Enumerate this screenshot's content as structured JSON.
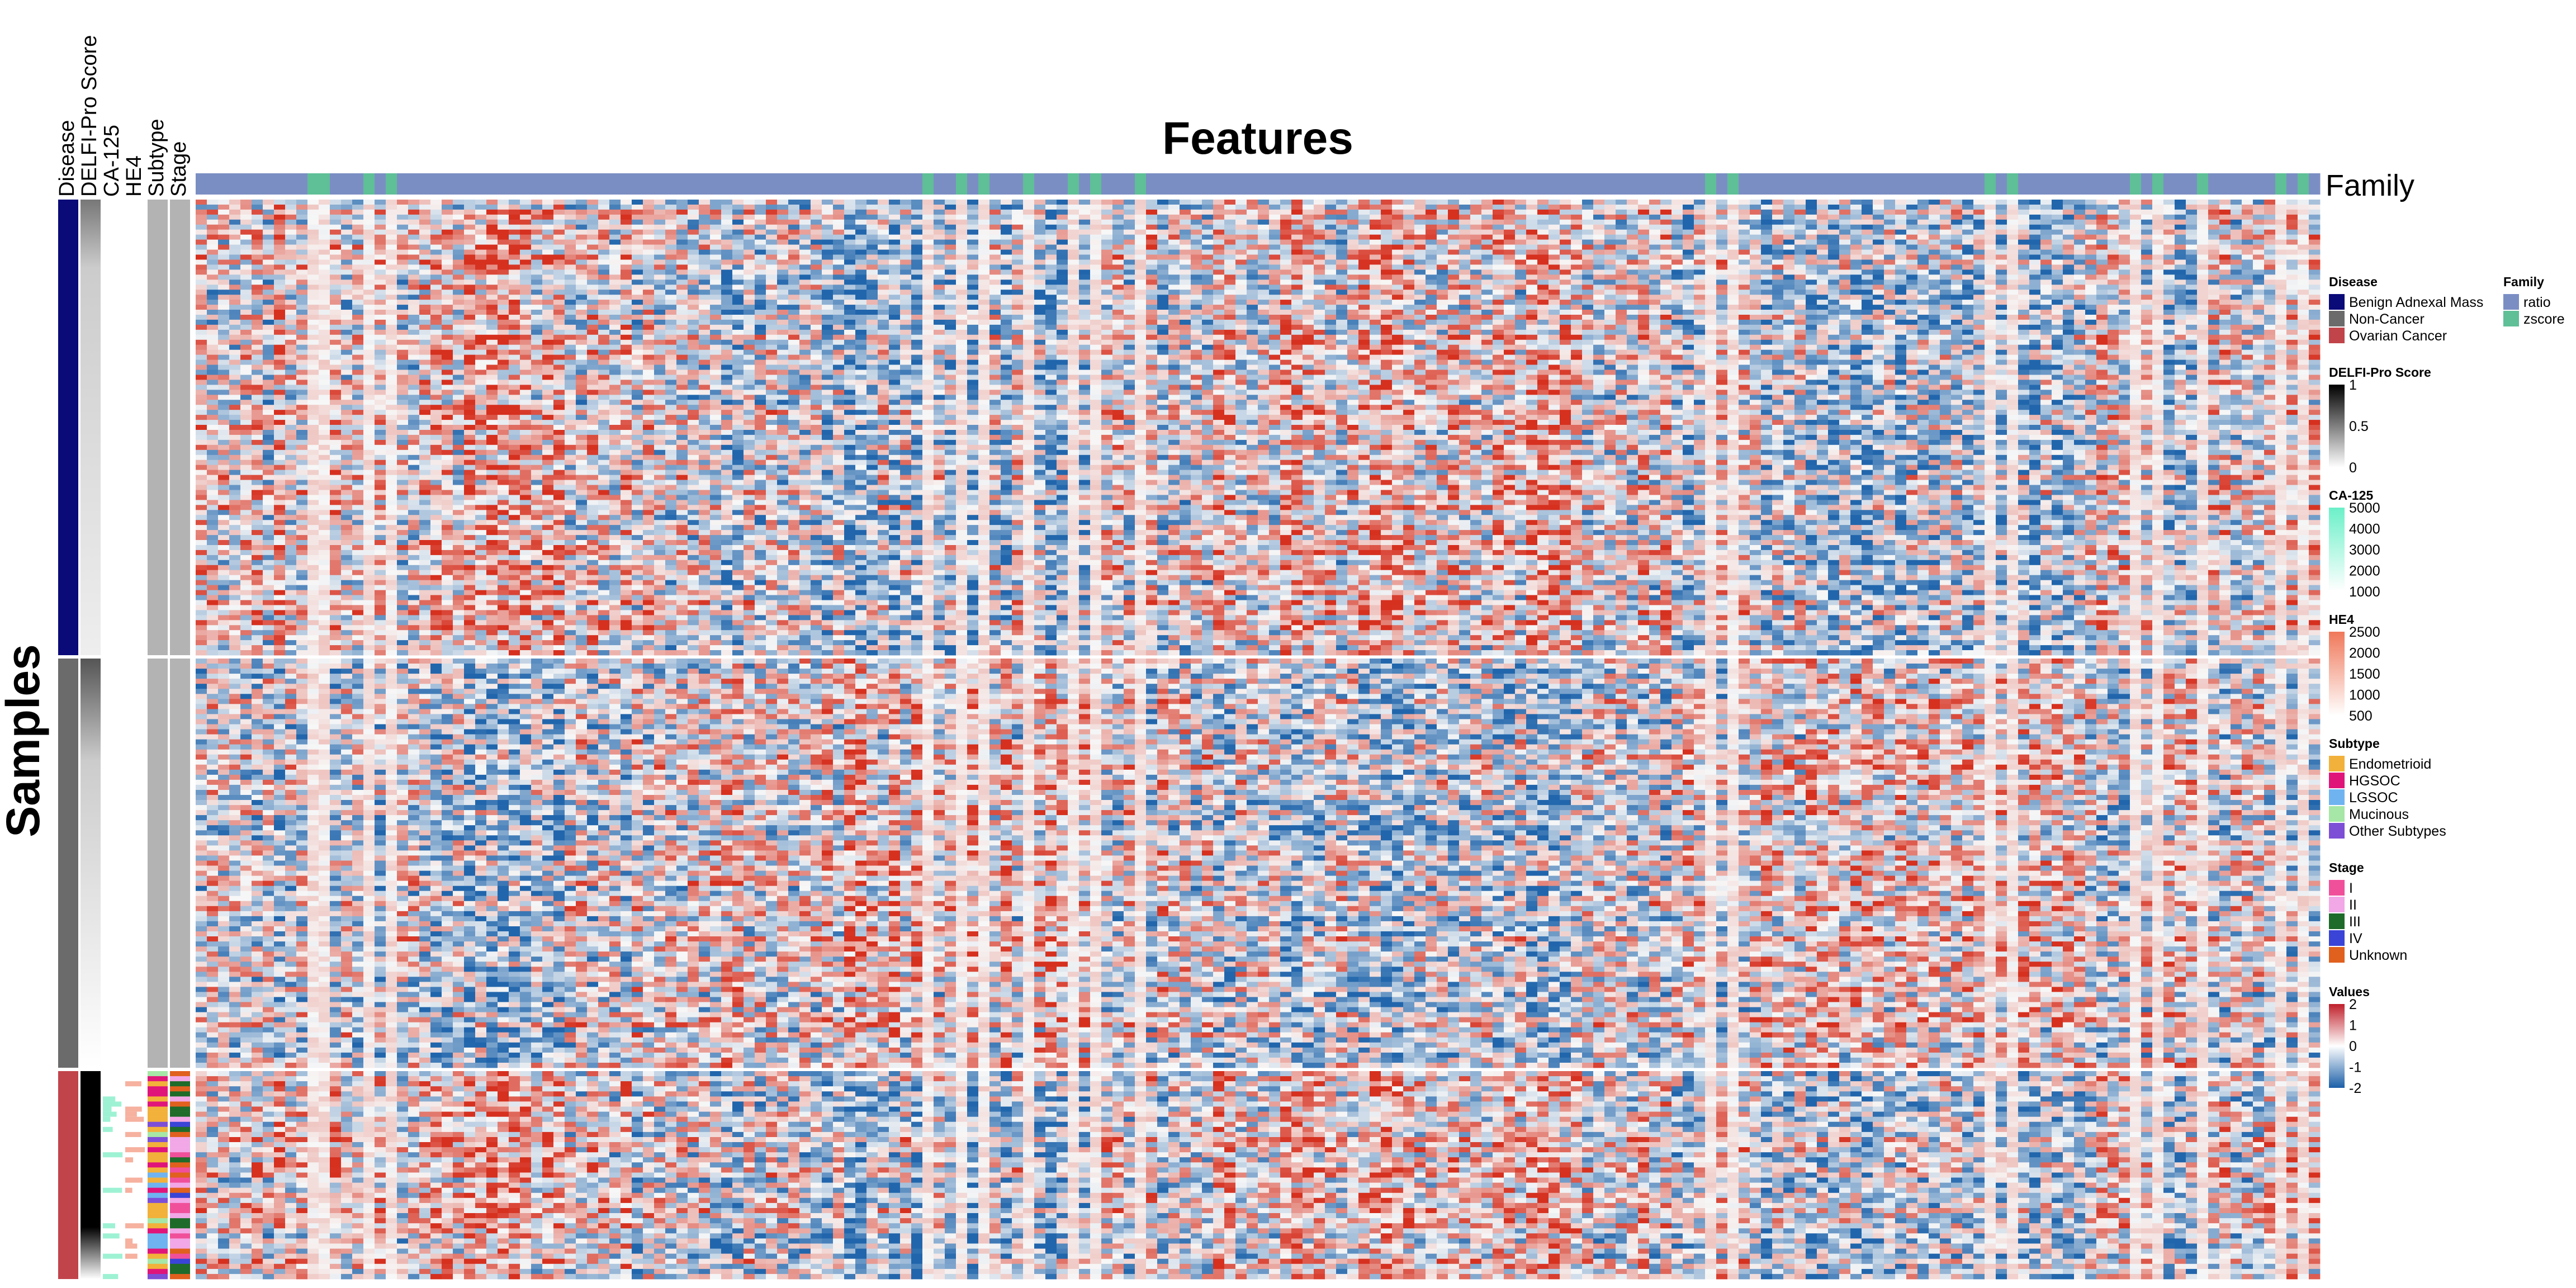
{
  "chart_data": {
    "type": "heatmap",
    "title": "Features",
    "xlabel": "Features",
    "ylabel": "Samples",
    "value_range": [
      -2,
      2
    ],
    "row_groups": [
      {
        "name": "Benign Adnexal Mass",
        "color": "#0a0a78",
        "row_share": 0.42
      },
      {
        "name": "Non-Cancer",
        "color": "#6b6b6b",
        "row_share": 0.38
      },
      {
        "name": "Ovarian Cancer",
        "color": "#c0444a",
        "row_share": 0.2
      }
    ],
    "row_annotations": [
      "Disease",
      "DELFI-Pro Score",
      "CA-125",
      "HE4",
      "Subtype",
      "Stage"
    ],
    "column_annotation": {
      "name": "Family",
      "categories": [
        "ratio",
        "zscore"
      ],
      "zscore_column_share": [
        0.05,
        0.06,
        0.08,
        0.09,
        0.34,
        0.36,
        0.37,
        0.39,
        0.41,
        0.42,
        0.44,
        0.71,
        0.72,
        0.84,
        0.85,
        0.91,
        0.92,
        0.94,
        0.98,
        0.99
      ]
    }
  },
  "column_titles": [
    "Disease",
    "DELFI-Pro Score",
    "CA-125",
    "HE4",
    "Subtype",
    "Stage"
  ],
  "legends": [
    {
      "title": "Disease",
      "type": "discrete",
      "items": [
        {
          "label": "Benign Adnexal Mass",
          "color": "#0a0a78"
        },
        {
          "label": "Non-Cancer",
          "color": "#6b6b6b"
        },
        {
          "label": "Ovarian Cancer",
          "color": "#c0444a"
        }
      ]
    },
    {
      "title": "DELFI-Pro Score",
      "type": "gradient",
      "stops": [
        "#ffffff",
        "#000000"
      ],
      "labels": [
        "1",
        "0.5",
        "0"
      ]
    },
    {
      "title": "CA-125",
      "type": "gradient",
      "stops": [
        "#ffffff",
        "#6bf0c8"
      ],
      "labels": [
        "5000",
        "4000",
        "3000",
        "2000",
        "1000"
      ]
    },
    {
      "title": "HE4",
      "type": "gradient",
      "stops": [
        "#ffffff",
        "#f0785a"
      ],
      "labels": [
        "2500",
        "2000",
        "1500",
        "1000",
        "500"
      ]
    },
    {
      "title": "Subtype",
      "type": "discrete",
      "items": [
        {
          "label": "Endometrioid",
          "color": "#f2b13a"
        },
        {
          "label": "HGSOC",
          "color": "#e0157a"
        },
        {
          "label": "LGSOC",
          "color": "#6fb4f0"
        },
        {
          "label": "Mucinous",
          "color": "#a6e6a6"
        },
        {
          "label": "Other Subtypes",
          "color": "#7d4fd6"
        }
      ]
    },
    {
      "title": "Stage",
      "type": "discrete",
      "items": [
        {
          "label": "I",
          "color": "#f0509a"
        },
        {
          "label": "II",
          "color": "#f2a8e6"
        },
        {
          "label": "III",
          "color": "#1f6b2a"
        },
        {
          "label": "IV",
          "color": "#3a44d6"
        },
        {
          "label": "Unknown",
          "color": "#e0601e"
        }
      ]
    },
    {
      "title": "Values",
      "type": "gradient",
      "stops": [
        "#1b5fa8",
        "#ffffff",
        "#c0202a"
      ],
      "labels": [
        "2",
        "1",
        "0",
        "-1",
        "-2"
      ]
    },
    {
      "title": "Family",
      "type": "discrete",
      "items": [
        {
          "label": "ratio",
          "color": "#7b8ec4"
        },
        {
          "label": "zscore",
          "color": "#5fbf97"
        }
      ]
    }
  ],
  "colors": {
    "neg": "#2166ac",
    "mid": "#f7f7f7",
    "pos": "#d6301f",
    "ratio": "#7b8ec4",
    "zscore": "#5fbf97"
  }
}
